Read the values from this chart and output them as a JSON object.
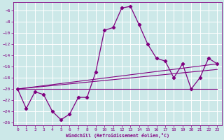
{
  "xlabel": "Windchill (Refroidissement éolien,°C)",
  "background_color": "#cce8e8",
  "grid_color": "#ffffff",
  "line_color": "#800080",
  "xlim": [
    -0.5,
    23.5
  ],
  "ylim": [
    -26.5,
    -4.5
  ],
  "yticks": [
    -6,
    -8,
    -10,
    -12,
    -14,
    -16,
    -18,
    -20,
    -22,
    -24,
    -26
  ],
  "xticks": [
    0,
    1,
    2,
    3,
    4,
    5,
    6,
    7,
    8,
    9,
    10,
    11,
    12,
    13,
    14,
    15,
    16,
    17,
    18,
    19,
    20,
    21,
    22,
    23
  ],
  "series": [
    [
      0,
      -20
    ],
    [
      1,
      -23.5
    ],
    [
      2,
      -20.5
    ],
    [
      3,
      -21
    ],
    [
      4,
      -24
    ],
    [
      5,
      -25.5
    ],
    [
      6,
      -24.5
    ],
    [
      7,
      -21.5
    ],
    [
      8,
      -21.5
    ],
    [
      9,
      -17
    ],
    [
      10,
      -9.5
    ],
    [
      11,
      -9.0
    ],
    [
      12,
      -5.5
    ],
    [
      13,
      -5.2
    ],
    [
      14,
      -8.5
    ],
    [
      15,
      -12
    ],
    [
      16,
      -14.5
    ],
    [
      17,
      -15
    ],
    [
      18,
      -18
    ],
    [
      19,
      -15.5
    ],
    [
      20,
      -20
    ],
    [
      21,
      -18
    ],
    [
      22,
      -14.5
    ],
    [
      23,
      -15.5
    ]
  ],
  "trend_lines": [
    {
      "x": [
        0,
        23
      ],
      "y": [
        -20.0,
        -15.5
      ]
    },
    {
      "x": [
        0,
        23
      ],
      "y": [
        -20.0,
        -16.5
      ]
    },
    {
      "x": [
        0,
        23
      ],
      "y": [
        -20.0,
        -20.0
      ]
    }
  ],
  "figsize": [
    3.2,
    2.0
  ],
  "dpi": 100
}
